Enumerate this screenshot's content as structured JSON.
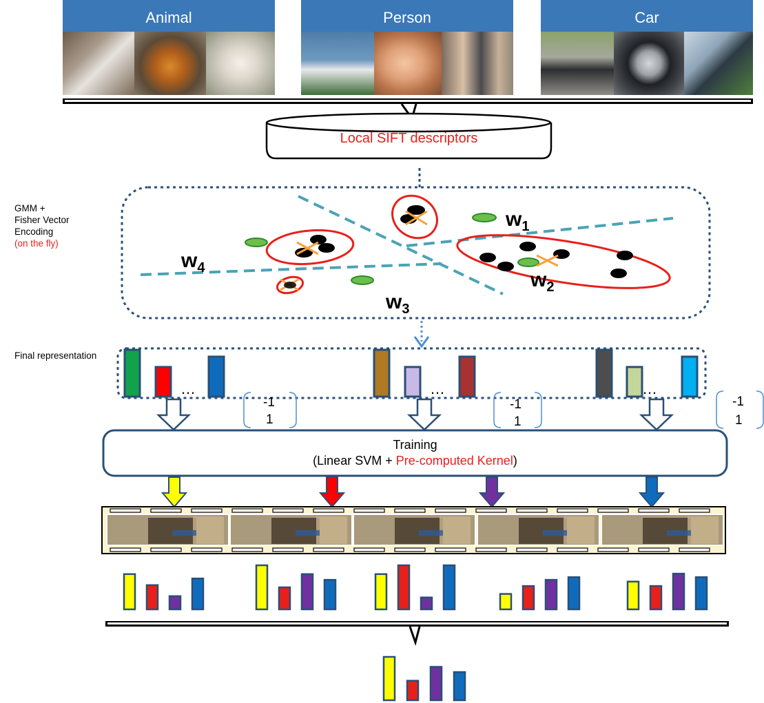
{
  "categories": [
    {
      "label": "Animal",
      "photos": [
        "cat",
        "tiger",
        "white dog"
      ]
    },
    {
      "label": "Person",
      "photos": [
        "soccer player",
        "child",
        "group of women"
      ]
    },
    {
      "label": "Car",
      "photos": [
        "small car",
        "wheel",
        "side mirror"
      ]
    }
  ],
  "descriptor_box": {
    "label": "Local SIFT descriptors"
  },
  "gmm_label": {
    "line1": "GMM +",
    "line2": "Fisher Vector",
    "line3": "Encoding",
    "line4": "(on the fly)"
  },
  "weights": [
    {
      "w": "w",
      "sub": "1"
    },
    {
      "w": "w",
      "sub": "2"
    },
    {
      "w": "w",
      "sub": "3"
    },
    {
      "w": "w",
      "sub": "4"
    }
  ],
  "final_label": "Final representation",
  "ellipsis": "…",
  "labels_pair": {
    "neg": "-1",
    "pos": "1"
  },
  "training": {
    "title": "Training",
    "open": "(Linear SVM + ",
    "highlight": "Pre-computed Kernel",
    "close": ")"
  },
  "colors": {
    "blue_header": "#3a78b8",
    "dark_blue_border": "#2a4f77",
    "teal_dash": "#4aa3b5",
    "red": "#e8201a",
    "green": "#6dbf4c",
    "yellow": "#ffff00",
    "purple": "#7030a0",
    "blue_bar": "#0f6cbd",
    "film_bg": "#fcf3cf"
  },
  "feature_bars": [
    {
      "group": 1,
      "colors": [
        "#12a34a",
        "#ff0000",
        "#0f6cbd"
      ]
    },
    {
      "group": 2,
      "colors": [
        "#b07a20",
        "#c8b9e6",
        "#a83232"
      ]
    },
    {
      "group": 3,
      "colors": [
        "#4d4d4d",
        "#c4d79b",
        "#00b0f0"
      ]
    }
  ],
  "frame_score_groups": [
    [
      0.8,
      0.55,
      0.3,
      0.7
    ],
    [
      1.0,
      0.5,
      0.8,
      0.67
    ],
    [
      0.8,
      1.0,
      0.27,
      1.0
    ],
    [
      0.35,
      0.53,
      0.67,
      0.73
    ],
    [
      0.63,
      0.53,
      0.81,
      0.73
    ]
  ],
  "final_scores": [
    1.0,
    0.45,
    0.77,
    0.65
  ]
}
